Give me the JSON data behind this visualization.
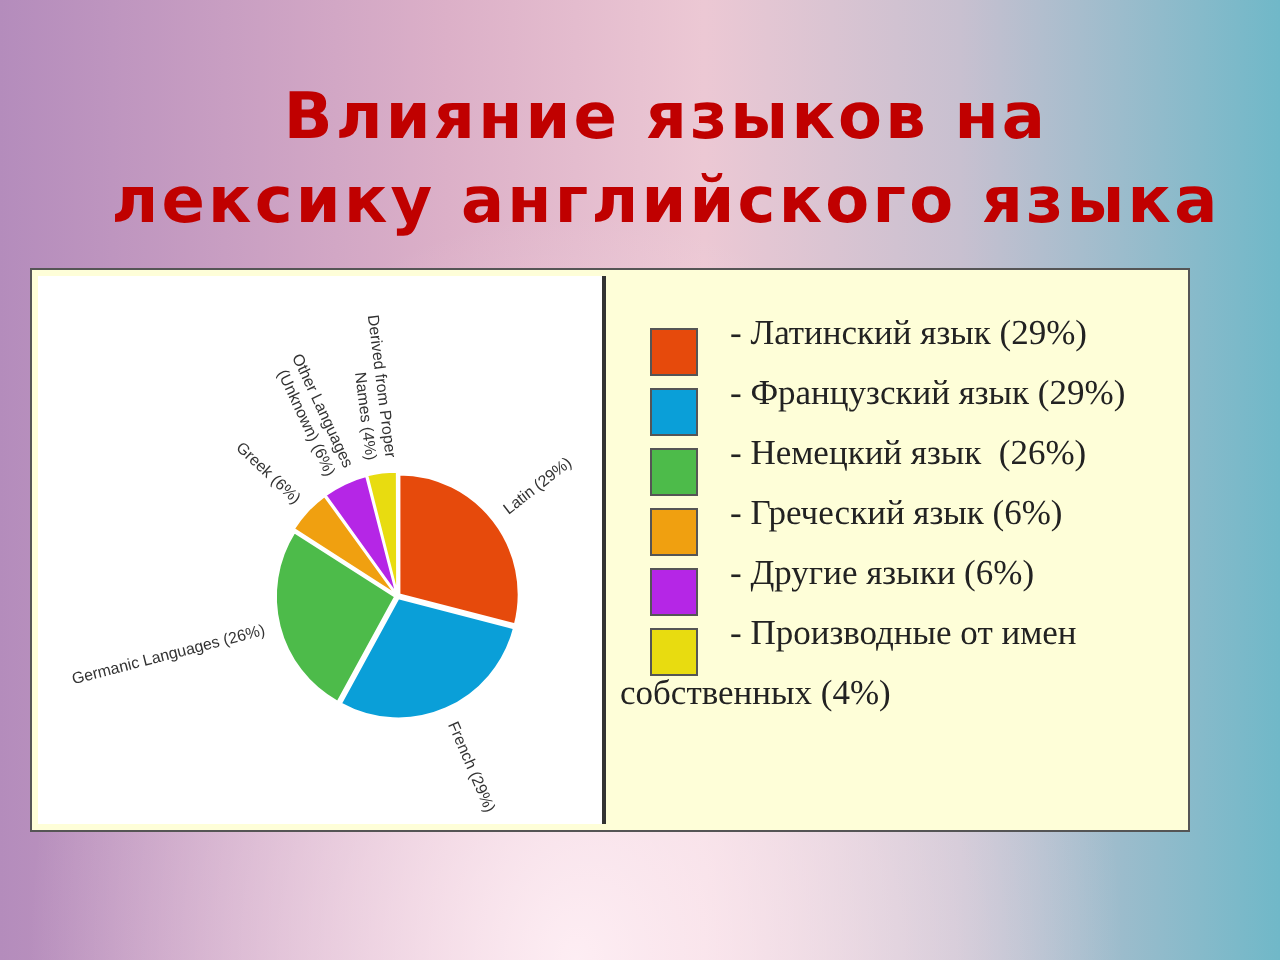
{
  "chart_data": {
    "type": "pie",
    "title": "Влияние языков на\nлексику английского языка",
    "categories": [
      "- Латинский язык (29%)",
      "- Французский язык (29%)",
      "- Немецкий язык  (26%)",
      "- Греческий язык (6%)",
      "- Другие языки (6%)",
      "- Производные от имен собственных (4%)"
    ],
    "values": [
      29,
      29,
      26,
      6,
      6,
      4
    ],
    "colors": [
      "#e64a0c",
      "#0a9fd8",
      "#4dbb4a",
      "#f0a010",
      "#b526e6",
      "#e8dc10"
    ],
    "value_labels": [
      "Latin (29%)",
      "French (29%)",
      "Germanic Languages (26%)",
      "Greek (6%)",
      "Other Languages (Unknown) (6%)",
      "Derived from Proper Names (4%)"
    ],
    "legend": "right"
  }
}
